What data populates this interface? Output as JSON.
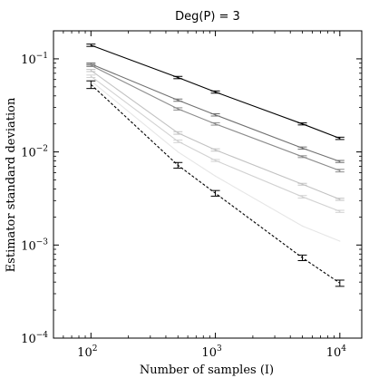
{
  "chart_data": {
    "type": "line",
    "title": "Deg(P) = 3",
    "xlabel": "Number of samples (I)",
    "ylabel": "Estimator standard deviation",
    "x_scale": "log",
    "y_scale": "log",
    "xlim": [
      50,
      15000
    ],
    "ylim": [
      0.0001,
      0.2
    ],
    "grid": false,
    "x_ticks": [
      {
        "value": 100,
        "base": "10",
        "exp": "2"
      },
      {
        "value": 1000,
        "base": "10",
        "exp": "3"
      },
      {
        "value": 10000,
        "base": "10",
        "exp": "4"
      }
    ],
    "y_ticks": [
      {
        "value": 0.0001,
        "base": "10",
        "exp": "−4"
      },
      {
        "value": 0.001,
        "base": "10",
        "exp": "−3"
      },
      {
        "value": 0.01,
        "base": "10",
        "exp": "−2"
      },
      {
        "value": 0.1,
        "base": "10",
        "exp": "−1"
      }
    ],
    "x": [
      100,
      500,
      1000,
      5000,
      10000
    ],
    "series": [
      {
        "values": [
          0.14,
          0.063,
          0.044,
          0.02,
          0.014
        ],
        "color": "#000000",
        "dashed": false,
        "errorbars": true,
        "err": [
          0.004,
          0.0018,
          0.0012,
          0.0005,
          0.0004
        ]
      },
      {
        "values": [
          0.088,
          0.036,
          0.025,
          0.011,
          0.0079
        ],
        "color": "#707070",
        "dashed": false,
        "errorbars": true,
        "err": [
          0.0025,
          0.001,
          0.0007,
          0.0003,
          0.0002
        ]
      },
      {
        "values": [
          0.085,
          0.029,
          0.02,
          0.0089,
          0.0063
        ],
        "color": "#8c8c8c",
        "dashed": false,
        "errorbars": true,
        "err": [
          0.0025,
          0.0008,
          0.0006,
          0.0002,
          0.0002
        ]
      },
      {
        "values": [
          0.075,
          0.016,
          0.0105,
          0.0045,
          0.0031
        ],
        "color": "#c2c2c2",
        "dashed": false,
        "errorbars": true,
        "err": [
          0.002,
          0.0005,
          0.0003,
          0.0001,
          8e-05
        ]
      },
      {
        "values": [
          0.065,
          0.013,
          0.0081,
          0.0033,
          0.0023
        ],
        "color": "#d2d2d2",
        "dashed": false,
        "errorbars": true,
        "err": [
          0.002,
          0.0004,
          0.0002,
          0.0001,
          6e-05
        ]
      },
      {
        "values": [
          0.058,
          0.01,
          0.0055,
          0.0016,
          0.0011
        ],
        "color": "#e6e6e6",
        "dashed": false,
        "errorbars": false,
        "err": [
          0,
          0,
          0,
          0,
          0
        ]
      },
      {
        "values": [
          0.053,
          0.0072,
          0.0036,
          0.00073,
          0.00039
        ],
        "color": "#000000",
        "dashed": true,
        "errorbars": true,
        "err": [
          0.005,
          0.0005,
          0.00025,
          5e-05,
          3e-05
        ]
      }
    ]
  }
}
